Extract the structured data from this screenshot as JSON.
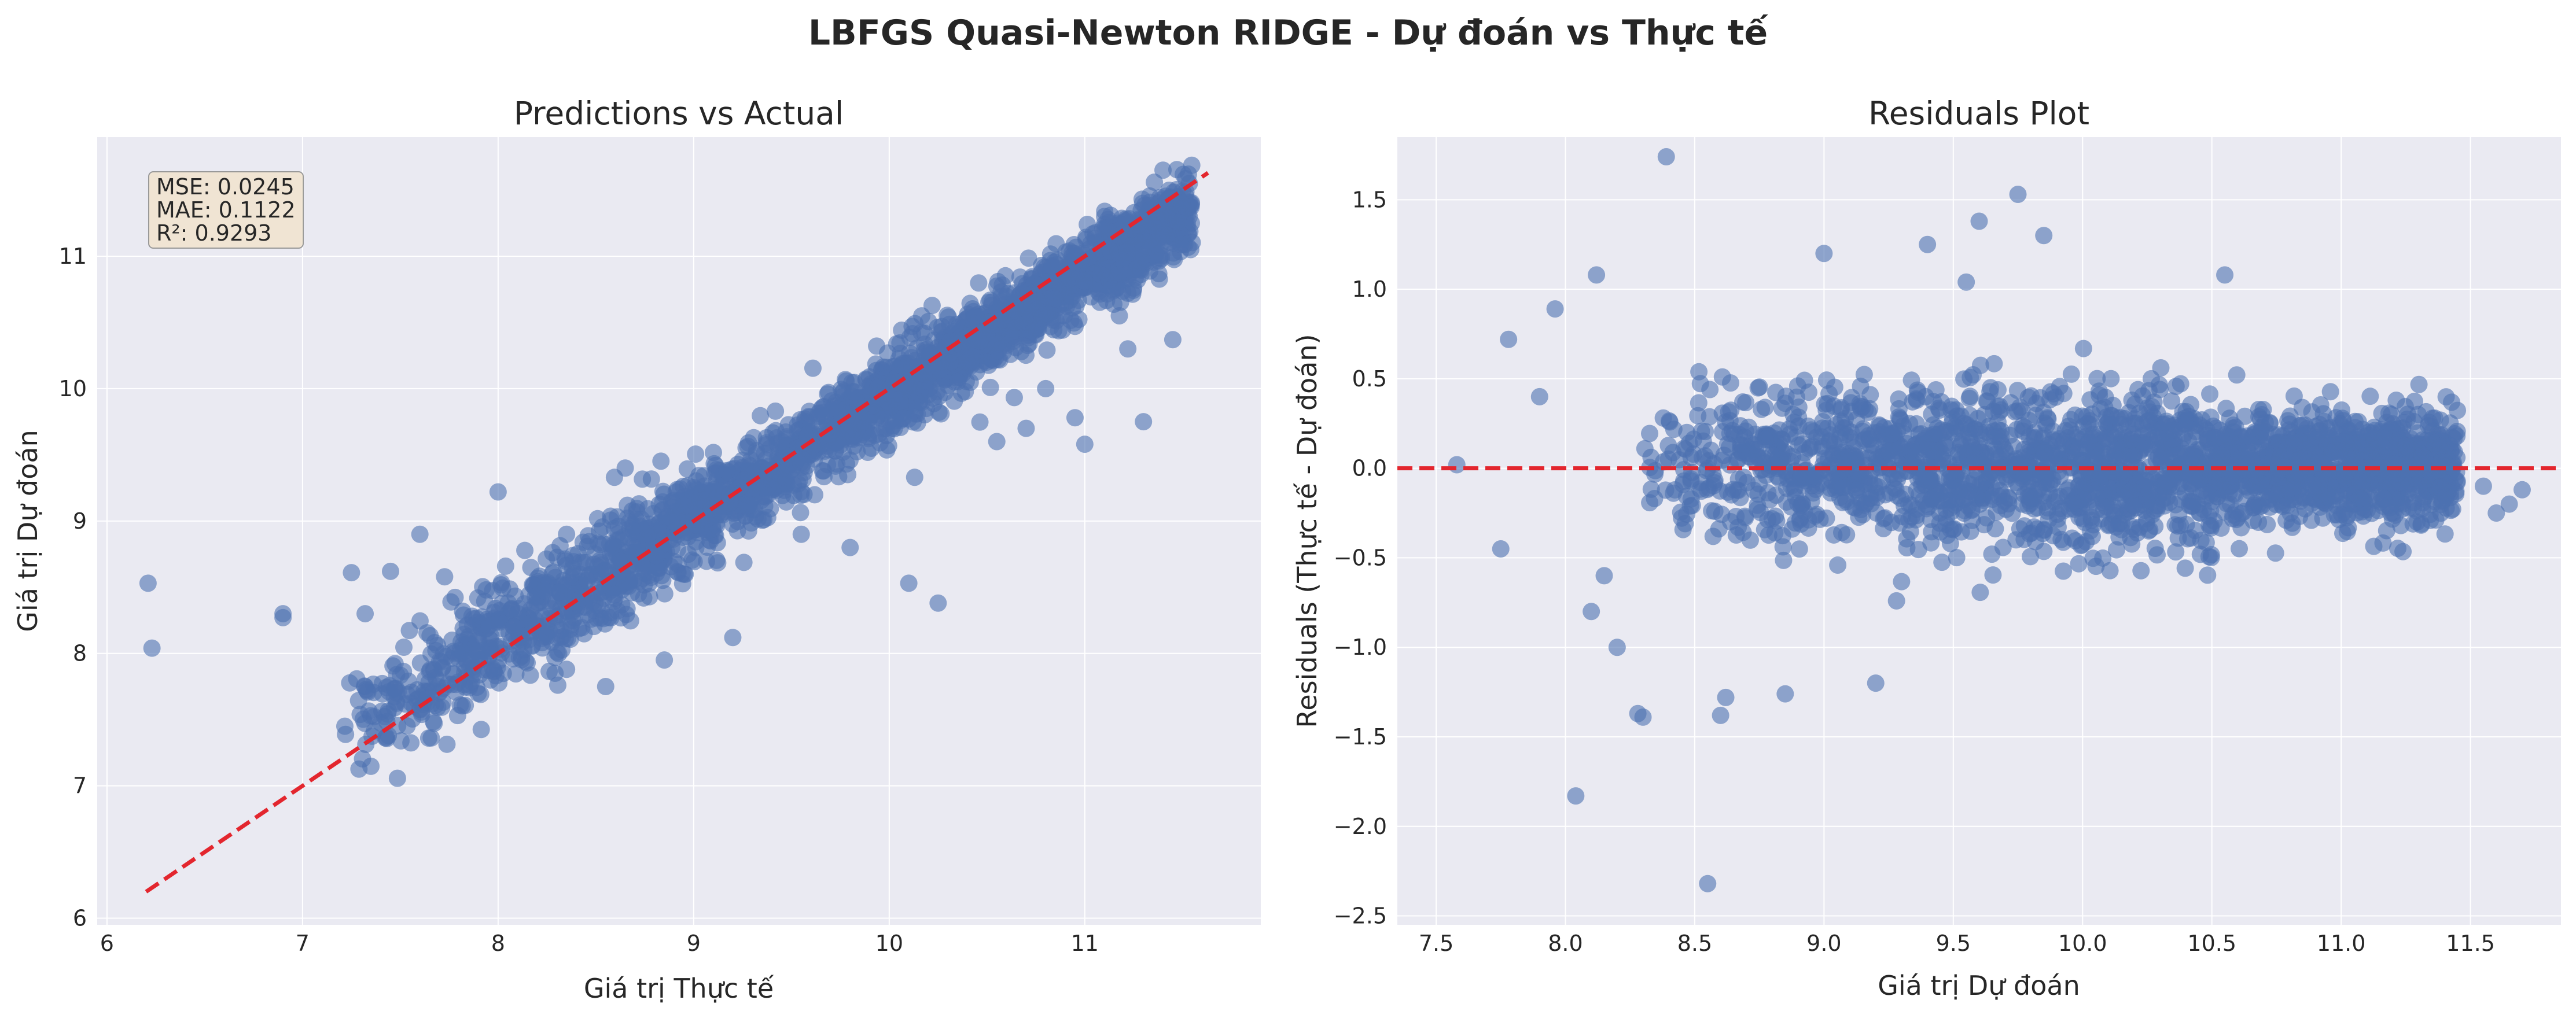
{
  "figure": {
    "suptitle": "LBFGS Quasi-Newton RIDGE - Dự đoán vs Thực tế"
  },
  "stats": {
    "mse": "MSE: 0.0245",
    "mae": "MAE: 0.1122",
    "r2": "R²: 0.9293"
  },
  "colors": {
    "points": "#4c72b0",
    "reference_line": "#e3262e",
    "axes_bg": "#eaeaf2",
    "grid": "#ffffff"
  },
  "chart_data": [
    {
      "type": "scatter",
      "title": "Predictions vs Actual",
      "xlabel": "Giá trị Thực tế",
      "ylabel": "Giá trị Dự đoán",
      "xlim": [
        5.95,
        11.9
      ],
      "ylim": [
        5.95,
        11.9
      ],
      "xticks": [
        "6",
        "7",
        "8",
        "9",
        "10",
        "11"
      ],
      "yticks": [
        "6",
        "7",
        "8",
        "9",
        "10",
        "11"
      ],
      "grid": true,
      "reference_line": {
        "style": "dashed",
        "from": [
          6.2,
          6.2
        ],
        "to": [
          11.63,
          11.63
        ]
      },
      "outliers": [
        [
          6.21,
          8.53
        ],
        [
          6.23,
          8.04
        ],
        [
          6.9,
          8.3
        ],
        [
          6.9,
          8.27
        ],
        [
          7.25,
          8.61
        ],
        [
          7.32,
          8.3
        ],
        [
          7.32,
          7.75
        ],
        [
          7.45,
          8.62
        ],
        [
          7.6,
          8.9
        ],
        [
          7.6,
          7.58
        ],
        [
          7.82,
          8.0
        ],
        [
          8.0,
          9.22
        ],
        [
          8.35,
          8.9
        ],
        [
          8.35,
          7.88
        ],
        [
          8.55,
          7.75
        ],
        [
          8.65,
          9.4
        ],
        [
          8.85,
          7.95
        ],
        [
          9.2,
          8.12
        ],
        [
          10.1,
          8.53
        ],
        [
          10.13,
          9.33
        ],
        [
          10.25,
          8.38
        ],
        [
          10.55,
          9.6
        ],
        [
          10.7,
          9.7
        ],
        [
          10.95,
          9.78
        ],
        [
          11.0,
          9.58
        ],
        [
          11.3,
          9.75
        ],
        [
          11.22,
          10.3
        ],
        [
          11.45,
          10.37
        ],
        [
          10.8,
          10.0
        ],
        [
          9.8,
          8.8
        ],
        [
          9.55,
          8.9
        ],
        [
          11.53,
          11.62
        ],
        [
          11.4,
          11.65
        ]
      ],
      "bulk": {
        "x_range": [
          7.2,
          11.55
        ],
        "relation": "y ≈ 0.92x + 0.75",
        "spread_sd": 0.15
      }
    },
    {
      "type": "scatter",
      "title": "Residuals Plot",
      "xlabel": "Giá trị Dự đoán",
      "ylabel": "Residuals (Thực tế - Dự đoán)",
      "xlim": [
        7.35,
        11.85
      ],
      "ylim": [
        -2.55,
        1.85
      ],
      "xticks": [
        "7.5",
        "8.0",
        "8.5",
        "9.0",
        "9.5",
        "10.0",
        "10.5",
        "11.0",
        "11.5"
      ],
      "yticks": [
        "−2.5",
        "−2.0",
        "−1.5",
        "−1.0",
        "−0.5",
        "0.0",
        "0.5",
        "1.0",
        "1.5"
      ],
      "grid": true,
      "reference_line": {
        "style": "dashed",
        "y": 0.0
      },
      "outliers": [
        [
          8.39,
          1.74
        ],
        [
          8.55,
          -2.32
        ],
        [
          8.04,
          -1.83
        ],
        [
          9.75,
          1.53
        ],
        [
          9.85,
          1.3
        ],
        [
          9.0,
          1.2
        ],
        [
          8.12,
          1.08
        ],
        [
          10.55,
          1.08
        ],
        [
          8.3,
          -1.39
        ],
        [
          8.28,
          -1.37
        ],
        [
          8.62,
          -1.28
        ],
        [
          8.6,
          -1.38
        ],
        [
          7.58,
          0.02
        ],
        [
          7.75,
          -0.45
        ],
        [
          7.78,
          0.72
        ],
        [
          7.9,
          0.4
        ],
        [
          7.96,
          0.89
        ],
        [
          11.7,
          -0.12
        ],
        [
          11.65,
          -0.2
        ],
        [
          11.6,
          -0.25
        ],
        [
          11.55,
          -0.1
        ],
        [
          8.1,
          -0.8
        ],
        [
          8.15,
          -0.6
        ],
        [
          9.4,
          1.25
        ],
        [
          9.6,
          1.38
        ],
        [
          9.55,
          1.04
        ],
        [
          8.85,
          -1.26
        ],
        [
          9.2,
          -1.2
        ],
        [
          8.2,
          -1.0
        ]
      ],
      "bulk": {
        "x_range": [
          8.3,
          11.45
        ],
        "relation": "residual ≈ 0",
        "spread_sd": 0.18
      }
    }
  ]
}
